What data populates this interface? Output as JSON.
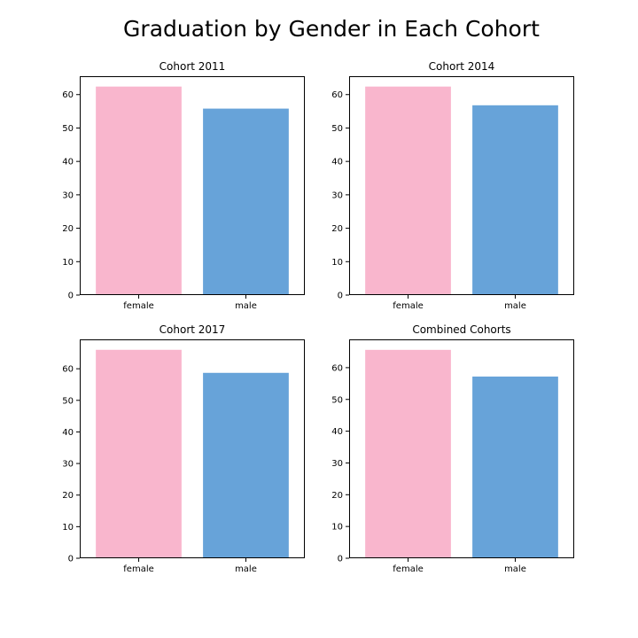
{
  "title": "Graduation by Gender in Each Cohort",
  "colors": {
    "female": "#f9b6cd",
    "male": "#67a3d9"
  },
  "chart_data": [
    {
      "type": "bar",
      "title": "Cohort 2011",
      "categories": [
        "female",
        "male"
      ],
      "values": [
        62.4,
        55.8
      ],
      "ylim": [
        0,
        65.5
      ],
      "yticks": [
        "0",
        "10",
        "20",
        "30",
        "40",
        "50",
        "60"
      ],
      "xlabel": "",
      "ylabel": "",
      "grid": false
    },
    {
      "type": "bar",
      "title": "Cohort 2014",
      "categories": [
        "female",
        "male"
      ],
      "values": [
        62.4,
        56.8
      ],
      "ylim": [
        0,
        65.5
      ],
      "yticks": [
        "0",
        "10",
        "20",
        "30",
        "40",
        "50",
        "60"
      ],
      "xlabel": "",
      "ylabel": "",
      "grid": false
    },
    {
      "type": "bar",
      "title": "Cohort 2017",
      "categories": [
        "female",
        "male"
      ],
      "values": [
        66.0,
        58.7
      ],
      "ylim": [
        0,
        69.3
      ],
      "yticks": [
        "0",
        "10",
        "20",
        "30",
        "40",
        "50",
        "60"
      ],
      "xlabel": "",
      "ylabel": "",
      "grid": false
    },
    {
      "type": "bar",
      "title": "Combined Cohorts",
      "categories": [
        "female",
        "male"
      ],
      "values": [
        65.6,
        57.2
      ],
      "ylim": [
        0,
        68.9
      ],
      "yticks": [
        "0",
        "10",
        "20",
        "30",
        "40",
        "50",
        "60"
      ],
      "xlabel": "",
      "ylabel": "",
      "grid": false
    }
  ]
}
